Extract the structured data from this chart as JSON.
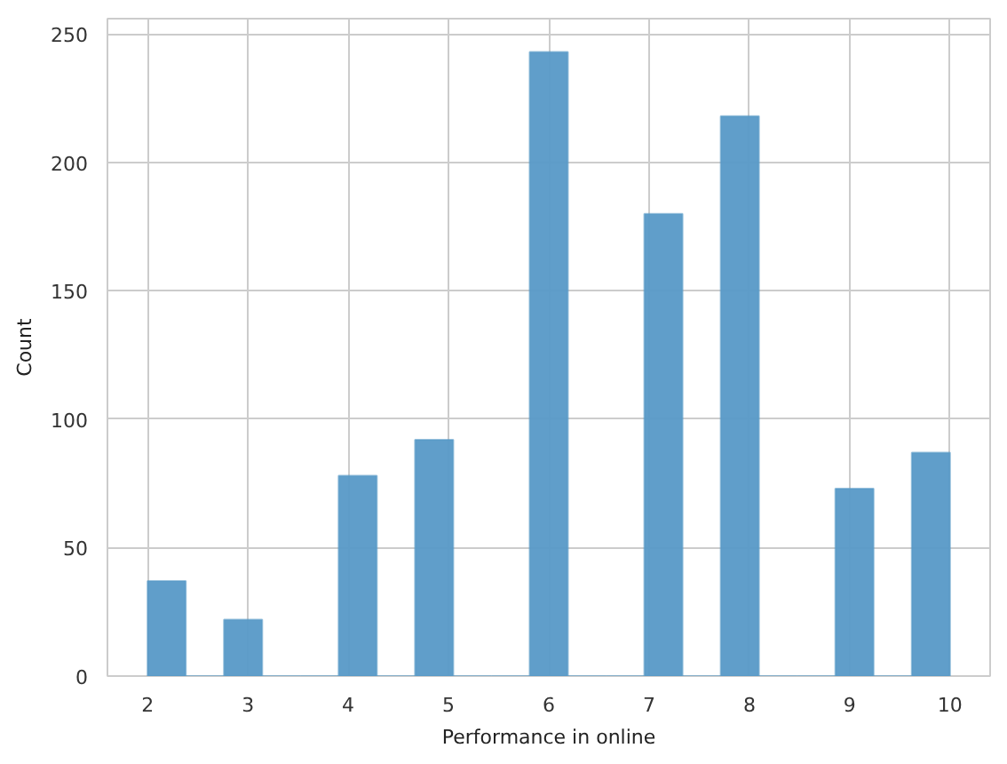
{
  "chart_data": {
    "type": "histogram",
    "xlabel": "Performance in online",
    "ylabel": "Count",
    "bins": [
      2,
      2.381,
      2.7619,
      3.1429,
      3.5238,
      3.9048,
      4.2857,
      4.6667,
      5.0476,
      5.4286,
      5.8095,
      6.1905,
      6.5714,
      6.9524,
      7.3333,
      7.7143,
      8.0952,
      8.4762,
      8.8571,
      9.2381,
      9.619,
      10
    ],
    "values": [
      37,
      0,
      22,
      0,
      0,
      78,
      0,
      92,
      0,
      0,
      243,
      0,
      0,
      180,
      0,
      218,
      0,
      0,
      73,
      0,
      87
    ],
    "color": "#5799c7",
    "xlim": [
      1.6,
      10.4
    ],
    "xticks": [
      2,
      3,
      4,
      5,
      6,
      7,
      8,
      9,
      10
    ],
    "ylim": [
      0,
      256
    ],
    "yticks": [
      0,
      50,
      100,
      150,
      200,
      250
    ],
    "grid": true
  }
}
